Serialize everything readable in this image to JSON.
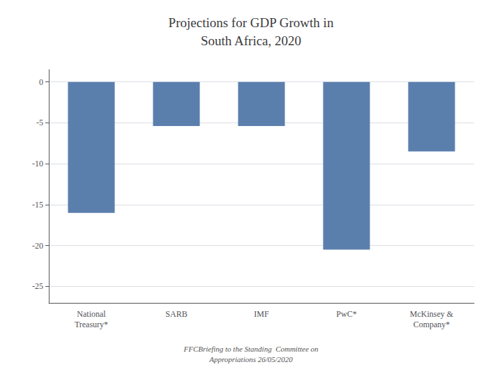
{
  "chart_data": {
    "type": "bar",
    "title": "Projections for GDP Growth in\nSouth Africa, 2020",
    "subtitle": "FFCBriefing to the Standing  Committee on\nAppropriations 26/05/2020",
    "categories": [
      "National\nTreasury*",
      "SARB",
      "IMF",
      "PwC*",
      "McKinsey &\nCompany*"
    ],
    "values": [
      -16.0,
      -5.4,
      -5.4,
      -20.5,
      -8.5
    ],
    "color": "#5b7fad",
    "ylim": [
      -27,
      1.5
    ],
    "yticks": [
      0,
      -5,
      -10,
      -15,
      -20,
      -25
    ],
    "grid": true
  }
}
